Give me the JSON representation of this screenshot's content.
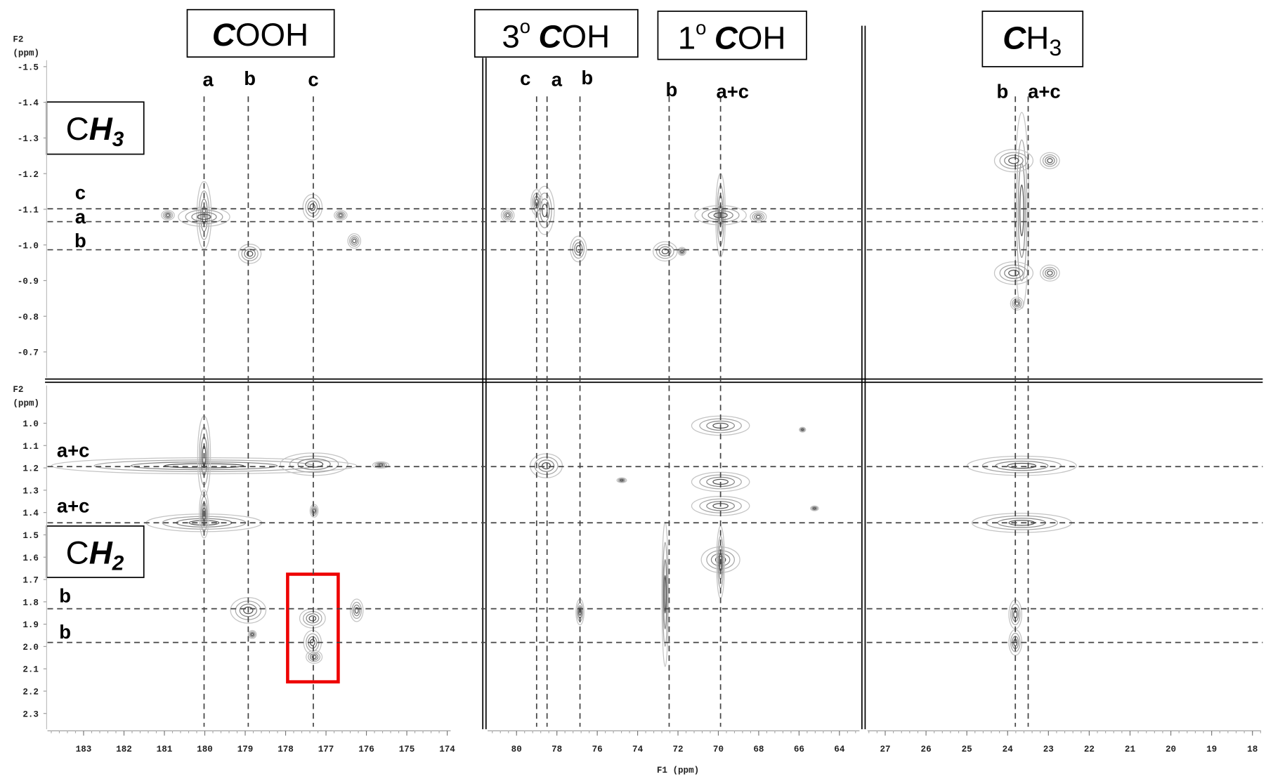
{
  "headers": {
    "cooh": {
      "bold": "C",
      "rest": "OOH"
    },
    "tertiary": {
      "prefix": "3",
      "sup": "o",
      "bold": "C",
      "rest": "OH"
    },
    "primary": {
      "prefix": "1",
      "sup": "o",
      "bold": "C",
      "rest": "OH"
    },
    "ch3_carbon": {
      "bold": "C",
      "rest": "H",
      "sub": "3"
    },
    "ch3_proton": {
      "plain": "C",
      "bold": "H",
      "sub": "3"
    },
    "ch2_proton": {
      "plain": "C",
      "bold": "H",
      "sub": "2"
    }
  },
  "peak_labels_top": [
    "a",
    "b",
    "c",
    "c",
    "a",
    "b",
    "b",
    "a+c",
    "b",
    "a+c"
  ],
  "peak_labels_left": [
    "c",
    "a",
    "b",
    "a+c",
    "a+c",
    "b",
    "b"
  ],
  "axes": {
    "f2_label": "F2",
    "f2_unit": "(ppm)",
    "f1_label": "F1 (ppm)",
    "y_top": [
      "-1.5",
      "-1.4",
      "-1.3",
      "-1.2",
      "-1.1",
      "-1.0",
      "-0.9",
      "-0.8",
      "-0.7"
    ],
    "y_bottom": [
      "1.0",
      "1.1",
      "1.2",
      "1.3",
      "1.4",
      "1.5",
      "1.6",
      "1.7",
      "1.8",
      "1.9",
      "2.0",
      "2.1",
      "2.2",
      "2.3"
    ],
    "x_panel1": [
      "183",
      "182",
      "181",
      "180",
      "179",
      "178",
      "177",
      "176",
      "175",
      "174"
    ],
    "x_panel2": [
      "80",
      "78",
      "76",
      "74",
      "72",
      "70",
      "68",
      "66",
      "64"
    ],
    "x_panel3": [
      "27",
      "26",
      "25",
      "24",
      "23",
      "22",
      "21",
      "20",
      "19",
      "18"
    ]
  }
}
